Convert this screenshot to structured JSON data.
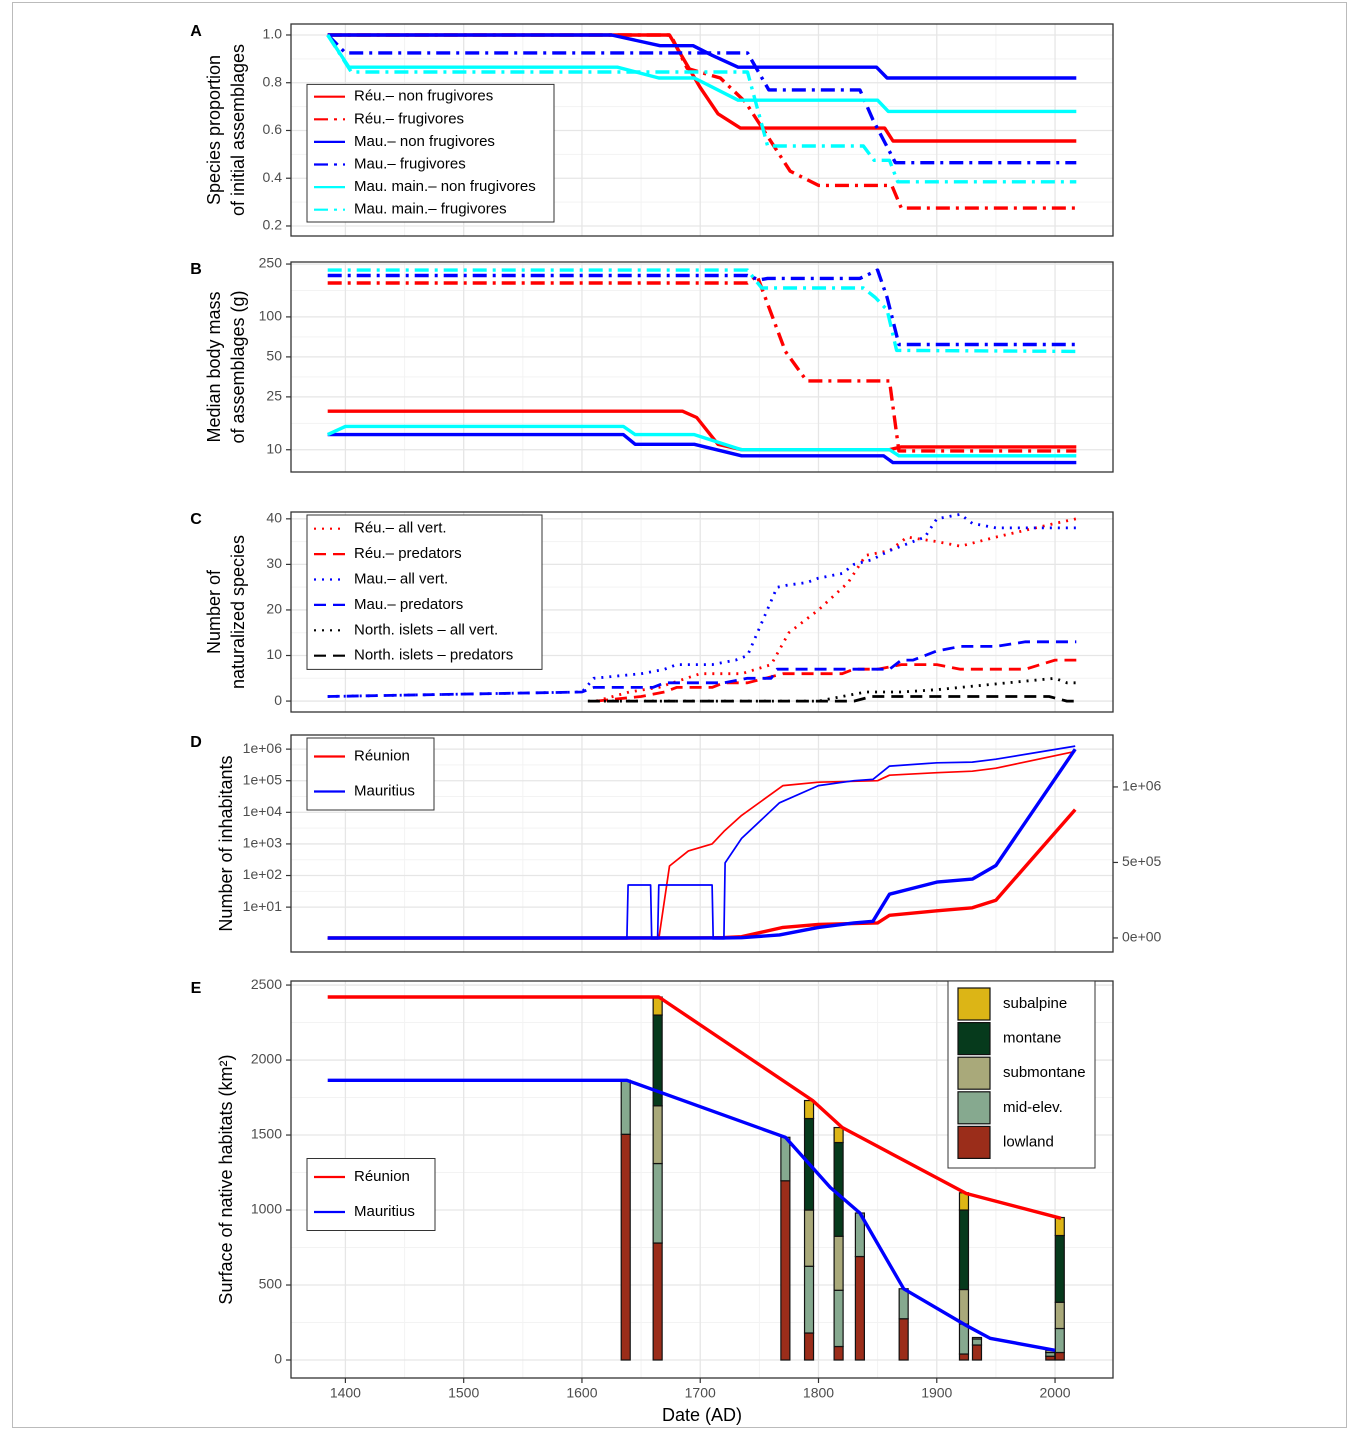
{
  "chart_data": [
    {
      "type": "line",
      "label": "A",
      "ylabel": [
        "Species proportion",
        "of initial assemblages"
      ],
      "ylim": [
        0.158,
        1.046
      ],
      "yticks": [
        0.2,
        0.4,
        0.6,
        0.8,
        {
          "value": 1,
          "label": "1.0"
        }
      ],
      "grid": true,
      "legend": "bottom-left",
      "series": [
        {
          "name": "Réu.– non frugivores",
          "color": "#ff0000",
          "linetype": "solid",
          "x": [
            1385,
            1674,
            1700,
            1715,
            1734,
            1856,
            1863,
            2018
          ],
          "values": [
            1,
            1,
            0.78,
            0.67,
            0.61,
            0.61,
            0.556,
            0.556
          ]
        },
        {
          "name": "Réu.– frugivores",
          "color": "#ff0000",
          "linetype": "dotdash",
          "x": [
            1385,
            1675,
            1689,
            1717,
            1738,
            1759,
            1776,
            1800,
            1862,
            1870,
            2018
          ],
          "values": [
            1,
            1,
            0.86,
            0.82,
            0.72,
            0.56,
            0.43,
            0.37,
            0.37,
            0.275,
            0.275
          ]
        },
        {
          "name": "Mau.– non frugivores",
          "color": "#0000ff",
          "linetype": "solid",
          "x": [
            1385,
            1625,
            1666,
            1694,
            1710,
            1732,
            1849,
            1858,
            2018
          ],
          "values": [
            1,
            1,
            0.955,
            0.955,
            0.915,
            0.865,
            0.865,
            0.82,
            0.82
          ]
        },
        {
          "name": "Mau.– frugivores",
          "color": "#0000ff",
          "linetype": "dotdash",
          "x": [
            1385,
            1400,
            1740,
            1758,
            1835,
            1846,
            1865,
            2018
          ],
          "values": [
            1,
            0.925,
            0.925,
            0.77,
            0.77,
            0.645,
            0.465,
            0.465
          ]
        },
        {
          "name": "Mau. main.– non frugivores",
          "color": "#00ffff",
          "linetype": "solid",
          "x": [
            1385,
            1403,
            1630,
            1665,
            1695,
            1732,
            1850,
            1859,
            2018
          ],
          "values": [
            1,
            0.865,
            0.865,
            0.82,
            0.82,
            0.727,
            0.727,
            0.68,
            0.68
          ]
        },
        {
          "name": "Mau. main.– frugivores",
          "color": "#00ffff",
          "linetype": "dotdash",
          "x": [
            1385,
            1405,
            1740,
            1757,
            1838,
            1847,
            1860,
            1867,
            2018
          ],
          "values": [
            1,
            0.845,
            0.845,
            0.535,
            0.535,
            0.475,
            0.475,
            0.385,
            0.385
          ]
        }
      ]
    },
    {
      "type": "line",
      "label": "B",
      "ylabel": [
        "Median body mass",
        "of assemblages (g)"
      ],
      "log_y": true,
      "ylim": [
        6.8,
        259
      ],
      "yticks": [
        10,
        25,
        50,
        100,
        250
      ],
      "grid": true,
      "series": [
        {
          "color": "#ff0000",
          "linetype": "solid",
          "x": [
            1385,
            1685,
            1697,
            1715,
            1735,
            1860,
            1870,
            2018
          ],
          "values": [
            19.5,
            19.5,
            17.5,
            11,
            10,
            10,
            10.5,
            10.5
          ]
        },
        {
          "color": "#ff0000",
          "linetype": "dotdash",
          "x": [
            1385,
            1740,
            1748,
            1772,
            1790,
            1860,
            1868,
            2018
          ],
          "values": [
            180,
            180,
            205,
            55,
            33,
            33,
            9.8,
            9.8
          ]
        },
        {
          "color": "#0000ff",
          "linetype": "solid",
          "x": [
            1385,
            1635,
            1645,
            1695,
            1735,
            1855,
            1863,
            2018
          ],
          "values": [
            13,
            13,
            11,
            11,
            9,
            9,
            8,
            8
          ]
        },
        {
          "color": "#0000ff",
          "linetype": "dotdash",
          "x": [
            1385,
            1740,
            1750,
            1757,
            1835,
            1850,
            1858,
            1868,
            2018
          ],
          "values": [
            205,
            205,
            190,
            195,
            195,
            225,
            140,
            62,
            62
          ]
        },
        {
          "color": "#00ffff",
          "linetype": "solid",
          "x": [
            1385,
            1400,
            1635,
            1645,
            1695,
            1735,
            1860,
            1868,
            2018
          ],
          "values": [
            13,
            15,
            15,
            13,
            13,
            10,
            10,
            9,
            9
          ]
        },
        {
          "color": "#00ffff",
          "linetype": "dotdash",
          "x": [
            1385,
            1740,
            1752,
            1838,
            1848,
            1858,
            1866,
            2018
          ],
          "values": [
            225,
            225,
            165,
            165,
            140,
            113,
            56,
            55
          ]
        }
      ]
    },
    {
      "type": "line",
      "label": "C",
      "ylabel": [
        "Number of",
        "naturalized species"
      ],
      "ylim": [
        -2.4,
        41.5
      ],
      "yticks": [
        0,
        10,
        20,
        30,
        40
      ],
      "grid": true,
      "legend": "top-left",
      "series": [
        {
          "name": "Réu.– all vert.",
          "color": "#ff0000",
          "linetype": "dotted",
          "x": [
            1612,
            1640,
            1665,
            1700,
            1735,
            1760,
            1775,
            1800,
            1825,
            1840,
            1860,
            1875,
            1900,
            1920,
            1950,
            2000,
            2018
          ],
          "values": [
            0,
            2,
            3,
            6,
            6,
            8,
            15,
            20,
            26,
            32,
            33,
            36,
            35,
            34,
            36,
            39,
            40
          ]
        },
        {
          "name": "Réu.– predators",
          "color": "#ff0000",
          "linetype": "dashed",
          "x": [
            1612,
            1650,
            1670,
            1680,
            1710,
            1720,
            1740,
            1755,
            1770,
            1820,
            1830,
            1850,
            1870,
            1900,
            1920,
            1975,
            2000,
            2018
          ],
          "values": [
            0,
            1,
            2,
            3,
            3,
            4,
            4,
            5,
            6,
            6,
            7,
            7,
            8,
            8,
            7,
            7,
            9,
            9
          ]
        },
        {
          "name": "Mau.– all vert.",
          "color": "#0000ff",
          "linetype": "dotted",
          "x": [
            1385,
            1600,
            1610,
            1650,
            1670,
            1680,
            1710,
            1730,
            1740,
            1755,
            1765,
            1775,
            1790,
            1800,
            1820,
            1830,
            1845,
            1860,
            1890,
            1900,
            1920,
            1930,
            1950,
            2000,
            2018
          ],
          "values": [
            1,
            2,
            5,
            6,
            7,
            8,
            8,
            9,
            10,
            19,
            25,
            25.5,
            26,
            27,
            28,
            30,
            31,
            33,
            36,
            40,
            41,
            39,
            38,
            38,
            38
          ]
        },
        {
          "name": "Mau.– predators",
          "color": "#0000ff",
          "linetype": "dashed",
          "x": [
            1385,
            1600,
            1610,
            1660,
            1670,
            1720,
            1740,
            1760,
            1765,
            1830,
            1860,
            1870,
            1880,
            1900,
            1920,
            1950,
            1975,
            2018
          ],
          "values": [
            1,
            2,
            3,
            3,
            4,
            4,
            5,
            5,
            7,
            7,
            7,
            9,
            9,
            11,
            12,
            12,
            13,
            13
          ]
        },
        {
          "name": "North. islets – all vert.",
          "color": "#000000",
          "linetype": "dotted",
          "x": [
            1605,
            1800,
            1820,
            1840,
            1870,
            1900,
            1920,
            1960,
            2000,
            2010,
            2018
          ],
          "values": [
            0,
            0,
            1,
            2,
            2,
            2.5,
            3,
            4,
            5,
            4,
            4
          ]
        },
        {
          "name": "North. islets – predators",
          "color": "#000000",
          "linetype": "dashed",
          "x": [
            1605,
            1830,
            1845,
            1995,
            2010,
            2018
          ],
          "values": [
            0,
            0,
            1,
            1,
            0,
            0
          ]
        }
      ]
    },
    {
      "type": "line",
      "label": "D",
      "ylabel": [
        "Number of inhabitants"
      ],
      "log_y": true,
      "ylim": [
        0.38,
        2800000
      ],
      "yticks": [
        {
          "value": 10,
          "label": "1e+01"
        },
        {
          "value": 100,
          "label": "1e+02"
        },
        {
          "value": 1000,
          "label": "1e+03"
        },
        {
          "value": 10000,
          "label": "1e+04"
        },
        {
          "value": 100000,
          "label": "1e+05"
        },
        {
          "value": 1000000,
          "label": "1e+06"
        }
      ],
      "y2lim": [
        -93000,
        1344000
      ],
      "y2ticks": [
        {
          "value": 0,
          "label": "0e+00"
        },
        {
          "value": 500000,
          "label": "5e+05"
        },
        {
          "value": 1000000,
          "label": "1e+06"
        }
      ],
      "grid": true,
      "legend": "top-left",
      "series": [
        {
          "name": "Réunion",
          "color": "#ff0000",
          "linetype": "solid",
          "axes": [
            "y",
            "y2"
          ],
          "x": [
            1385,
            1665,
            1674,
            1690,
            1710,
            1720,
            1735,
            1770,
            1800,
            1850,
            1860,
            1900,
            1930,
            1950,
            2017
          ],
          "values": [
            1,
            1,
            200,
            600,
            1000,
            2500,
            8000,
            70000,
            90000,
            100000,
            150000,
            180000,
            200000,
            250000,
            850000
          ]
        },
        {
          "name": "Mauritius",
          "color": "#0000ff",
          "linetype": "solid",
          "axes": [
            "y",
            "y2"
          ],
          "x": [
            1385,
            1638,
            1639,
            1658,
            1659,
            1664,
            1665,
            1710,
            1711,
            1720,
            1721,
            1735,
            1767,
            1800,
            1830,
            1846,
            1860,
            1900,
            1930,
            1950,
            2017
          ],
          "values": [
            1,
            1,
            50,
            50,
            1,
            1,
            50,
            50,
            1,
            1,
            250,
            1500,
            20000,
            70000,
            100000,
            110000,
            290000,
            370000,
            390000,
            480000,
            1250000
          ]
        }
      ]
    },
    {
      "type": "combo",
      "label": "E",
      "ylabel": [
        "Surface of native habitats (km²)"
      ],
      "xlabel": "Date (AD)",
      "xlim": [
        1354,
        2049
      ],
      "xticks": [
        1400,
        1500,
        1600,
        1700,
        1800,
        1900,
        2000
      ],
      "ylim": [
        -120,
        2527
      ],
      "yticks": [
        0,
        500,
        1000,
        1500,
        2000,
        2500
      ],
      "grid": true,
      "legend": "left",
      "bar_legend": "top-right",
      "series": [
        {
          "name": "Réunion",
          "color": "#ff0000",
          "linetype": "solid",
          "x": [
            1385,
            1665,
            1795,
            1820,
            1925,
            2005
          ],
          "values": [
            2420,
            2420,
            1730,
            1550,
            1110,
            945
          ]
        },
        {
          "name": "Mauritius",
          "color": "#0000ff",
          "linetype": "solid",
          "x": [
            1385,
            1638,
            1772,
            1810,
            1835,
            1872,
            1925,
            1945,
            2000
          ],
          "values": [
            1865,
            1865,
            1485,
            1150,
            980,
            475,
            230,
            145,
            65
          ]
        }
      ],
      "bars": {
        "x": [
          1637,
          1664,
          1772,
          1792,
          1817,
          1835,
          1872,
          1923,
          1934,
          1996,
          2004
        ],
        "series": [
          {
            "name": "lowland",
            "color": "#9b2d1a",
            "values": [
              1505,
              780,
              1195,
              180,
              90,
              690,
              275,
              40,
              100,
              25,
              50
            ]
          },
          {
            "name": "mid-elev.",
            "color": "#86a98f",
            "values": [
              360,
              530,
              290,
              445,
              375,
              290,
              200,
              200,
              40,
              25,
              160
            ]
          },
          {
            "name": "submontane",
            "color": "#a9a97a",
            "values": [
              0,
              385,
              0,
              375,
              360,
              0,
              0,
              230,
              10,
              15,
              175
            ]
          },
          {
            "name": "montane",
            "color": "#063a1c",
            "values": [
              0,
              605,
              0,
              610,
              625,
              0,
              0,
              530,
              0,
              0,
              445
            ]
          },
          {
            "name": "subalpine",
            "color": "#dcb516",
            "values": [
              0,
              120,
              0,
              120,
              100,
              0,
              0,
              115,
              0,
              0,
              120
            ]
          }
        ]
      }
    }
  ]
}
